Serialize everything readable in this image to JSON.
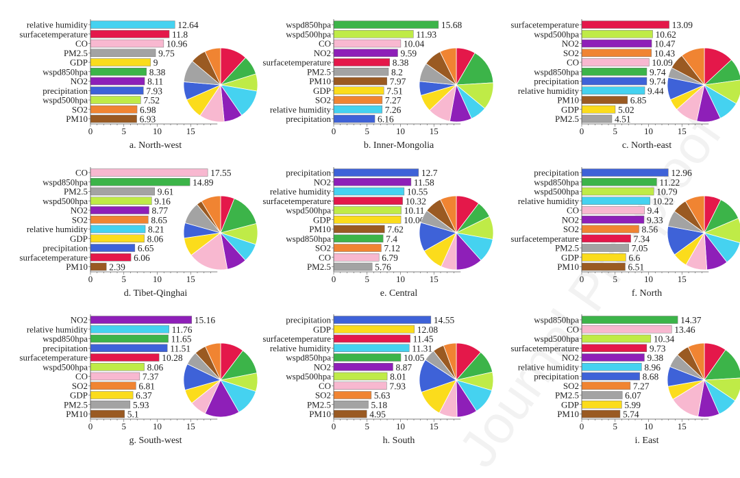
{
  "watermark": "Journal Pre-proof",
  "colors": {
    "surfacetemperature": "#e4184a",
    "wspd850hpa": "#3cb449",
    "wspd500hpa": "#bfeb47",
    "relative humidity": "#45d2f0",
    "NO2": "#8e1fb8",
    "CO": "#f8b8d0",
    "GDP": "#fbdc1c",
    "precipitation": "#3e62d8",
    "PM2.5": "#a3a3a3",
    "PM10": "#9a5a22",
    "SO2": "#f08432"
  },
  "pie_order": [
    "surfacetemperature",
    "wspd850hpa",
    "wspd500hpa",
    "relative humidity",
    "NO2",
    "CO",
    "GDP",
    "precipitation",
    "PM2.5",
    "PM10",
    "SO2"
  ],
  "chart_data": [
    {
      "type": "bar",
      "title": "a. North-west",
      "xticks": [
        "0",
        "5",
        "10",
        "15"
      ],
      "xlim": [
        0,
        19
      ],
      "categories": [
        "relative humidity",
        "surfacetemperature",
        "CO",
        "PM2.5",
        "GDP",
        "wspd850hpa",
        "NO2",
        "precipitation",
        "wspd500hpa",
        "SO2",
        "PM10"
      ],
      "values": [
        12.64,
        11.8,
        10.96,
        9.75,
        9,
        8.38,
        8.11,
        7.93,
        7.52,
        6.98,
        6.93
      ]
    },
    {
      "type": "bar",
      "title": "b. Inner-Mongolia",
      "xticks": [
        "0",
        "5",
        "10",
        "15"
      ],
      "xlim": [
        0,
        19
      ],
      "categories": [
        "wspd850hpa",
        "wspd500hpa",
        "CO",
        "NO2",
        "surfacetemperature",
        "PM2.5",
        "PM10",
        "GDP",
        "SO2",
        "relative humidity",
        "precipitation"
      ],
      "values": [
        15.68,
        11.93,
        10.04,
        9.59,
        8.38,
        8.2,
        7.97,
        7.51,
        7.27,
        7.26,
        6.16
      ]
    },
    {
      "type": "bar",
      "title": "c. North-east",
      "xticks": [
        "0",
        "5",
        "10",
        "15"
      ],
      "xlim": [
        0,
        19
      ],
      "categories": [
        "surfacetemperature",
        "wspd500hpa",
        "NO2",
        "SO2",
        "CO",
        "wspd850hpa",
        "precipitation",
        "relative humidity",
        "PM10",
        "GDP",
        "PM2.5"
      ],
      "values": [
        13.09,
        10.62,
        10.47,
        10.43,
        10.09,
        9.74,
        9.74,
        9.44,
        6.85,
        5.02,
        4.51
      ]
    },
    {
      "type": "bar",
      "title": "d. Tibet-Qinghai",
      "xticks": [
        "0",
        "5",
        "10",
        "15"
      ],
      "xlim": [
        0,
        19
      ],
      "categories": [
        "CO",
        "wspd850hpa",
        "PM2.5",
        "wspd500hpa",
        "NO2",
        "SO2",
        "relative humidity",
        "GDP",
        "precipitation",
        "surfacetemperature",
        "PM10"
      ],
      "values": [
        17.55,
        14.89,
        9.61,
        9.16,
        8.77,
        8.65,
        8.21,
        8.06,
        6.65,
        6.06,
        2.39
      ]
    },
    {
      "type": "bar",
      "title": "e. Central",
      "xticks": [
        "0",
        "5",
        "10",
        "15"
      ],
      "xlim": [
        0,
        19
      ],
      "categories": [
        "precipitation",
        "NO2",
        "relative humidity",
        "surfacetemperature",
        "wspd500hpa",
        "GDP",
        "PM10",
        "wspd850hpa",
        "SO2",
        "CO",
        "PM2.5"
      ],
      "values": [
        12.7,
        11.58,
        10.55,
        10.32,
        10.11,
        10.06,
        7.62,
        7.4,
        7.12,
        6.79,
        5.76
      ]
    },
    {
      "type": "bar",
      "title": "f. North",
      "xticks": [
        "0",
        "5",
        "10",
        "15"
      ],
      "xlim": [
        0,
        19
      ],
      "categories": [
        "precipitation",
        "wspd850hpa",
        "wspd500hpa",
        "relative humidity",
        "CO",
        "NO2",
        "SO2",
        "surfacetemperature",
        "PM2.5",
        "GDP",
        "PM10"
      ],
      "values": [
        12.96,
        11.22,
        10.79,
        10.22,
        9.4,
        9.33,
        8.56,
        7.34,
        7.05,
        6.6,
        6.51
      ]
    },
    {
      "type": "bar",
      "title": "g. South-west",
      "xticks": [
        "0",
        "5",
        "10",
        "15"
      ],
      "xlim": [
        0,
        19
      ],
      "categories": [
        "NO2",
        "relative humidity",
        "wspd850hpa",
        "precipitation",
        "surfacetemperature",
        "wspd500hpa",
        "CO",
        "SO2",
        "GDP",
        "PM2.5",
        "PM10"
      ],
      "values": [
        15.16,
        11.76,
        11.65,
        11.51,
        10.28,
        8.06,
        7.37,
        6.81,
        6.37,
        5.93,
        5.1
      ]
    },
    {
      "type": "bar",
      "title": "h. South",
      "xticks": [
        "0",
        "5",
        "10",
        "15"
      ],
      "xlim": [
        0,
        19
      ],
      "categories": [
        "precipitation",
        "GDP",
        "surfacetemperature",
        "relative humidity",
        "wspd850hpa",
        "NO2",
        "wspd500hpa",
        "CO",
        "SO2",
        "PM2.5",
        "PM10"
      ],
      "values": [
        14.55,
        12.08,
        11.45,
        11.31,
        10.05,
        8.87,
        8.01,
        7.93,
        5.63,
        5.18,
        4.95
      ]
    },
    {
      "type": "bar",
      "title": "i. East",
      "xticks": [
        "0",
        "5",
        "10",
        "15"
      ],
      "xlim": [
        0,
        19
      ],
      "categories": [
        "wspd850hpa",
        "CO",
        "wspd500hpa",
        "surfacetemperature",
        "NO2",
        "relative humidity",
        "precipitation",
        "SO2",
        "PM2.5",
        "GDP",
        "PM10"
      ],
      "values": [
        14.37,
        13.46,
        10.34,
        9.73,
        9.38,
        8.96,
        8.68,
        7.27,
        6.07,
        5.99,
        5.74
      ]
    }
  ]
}
